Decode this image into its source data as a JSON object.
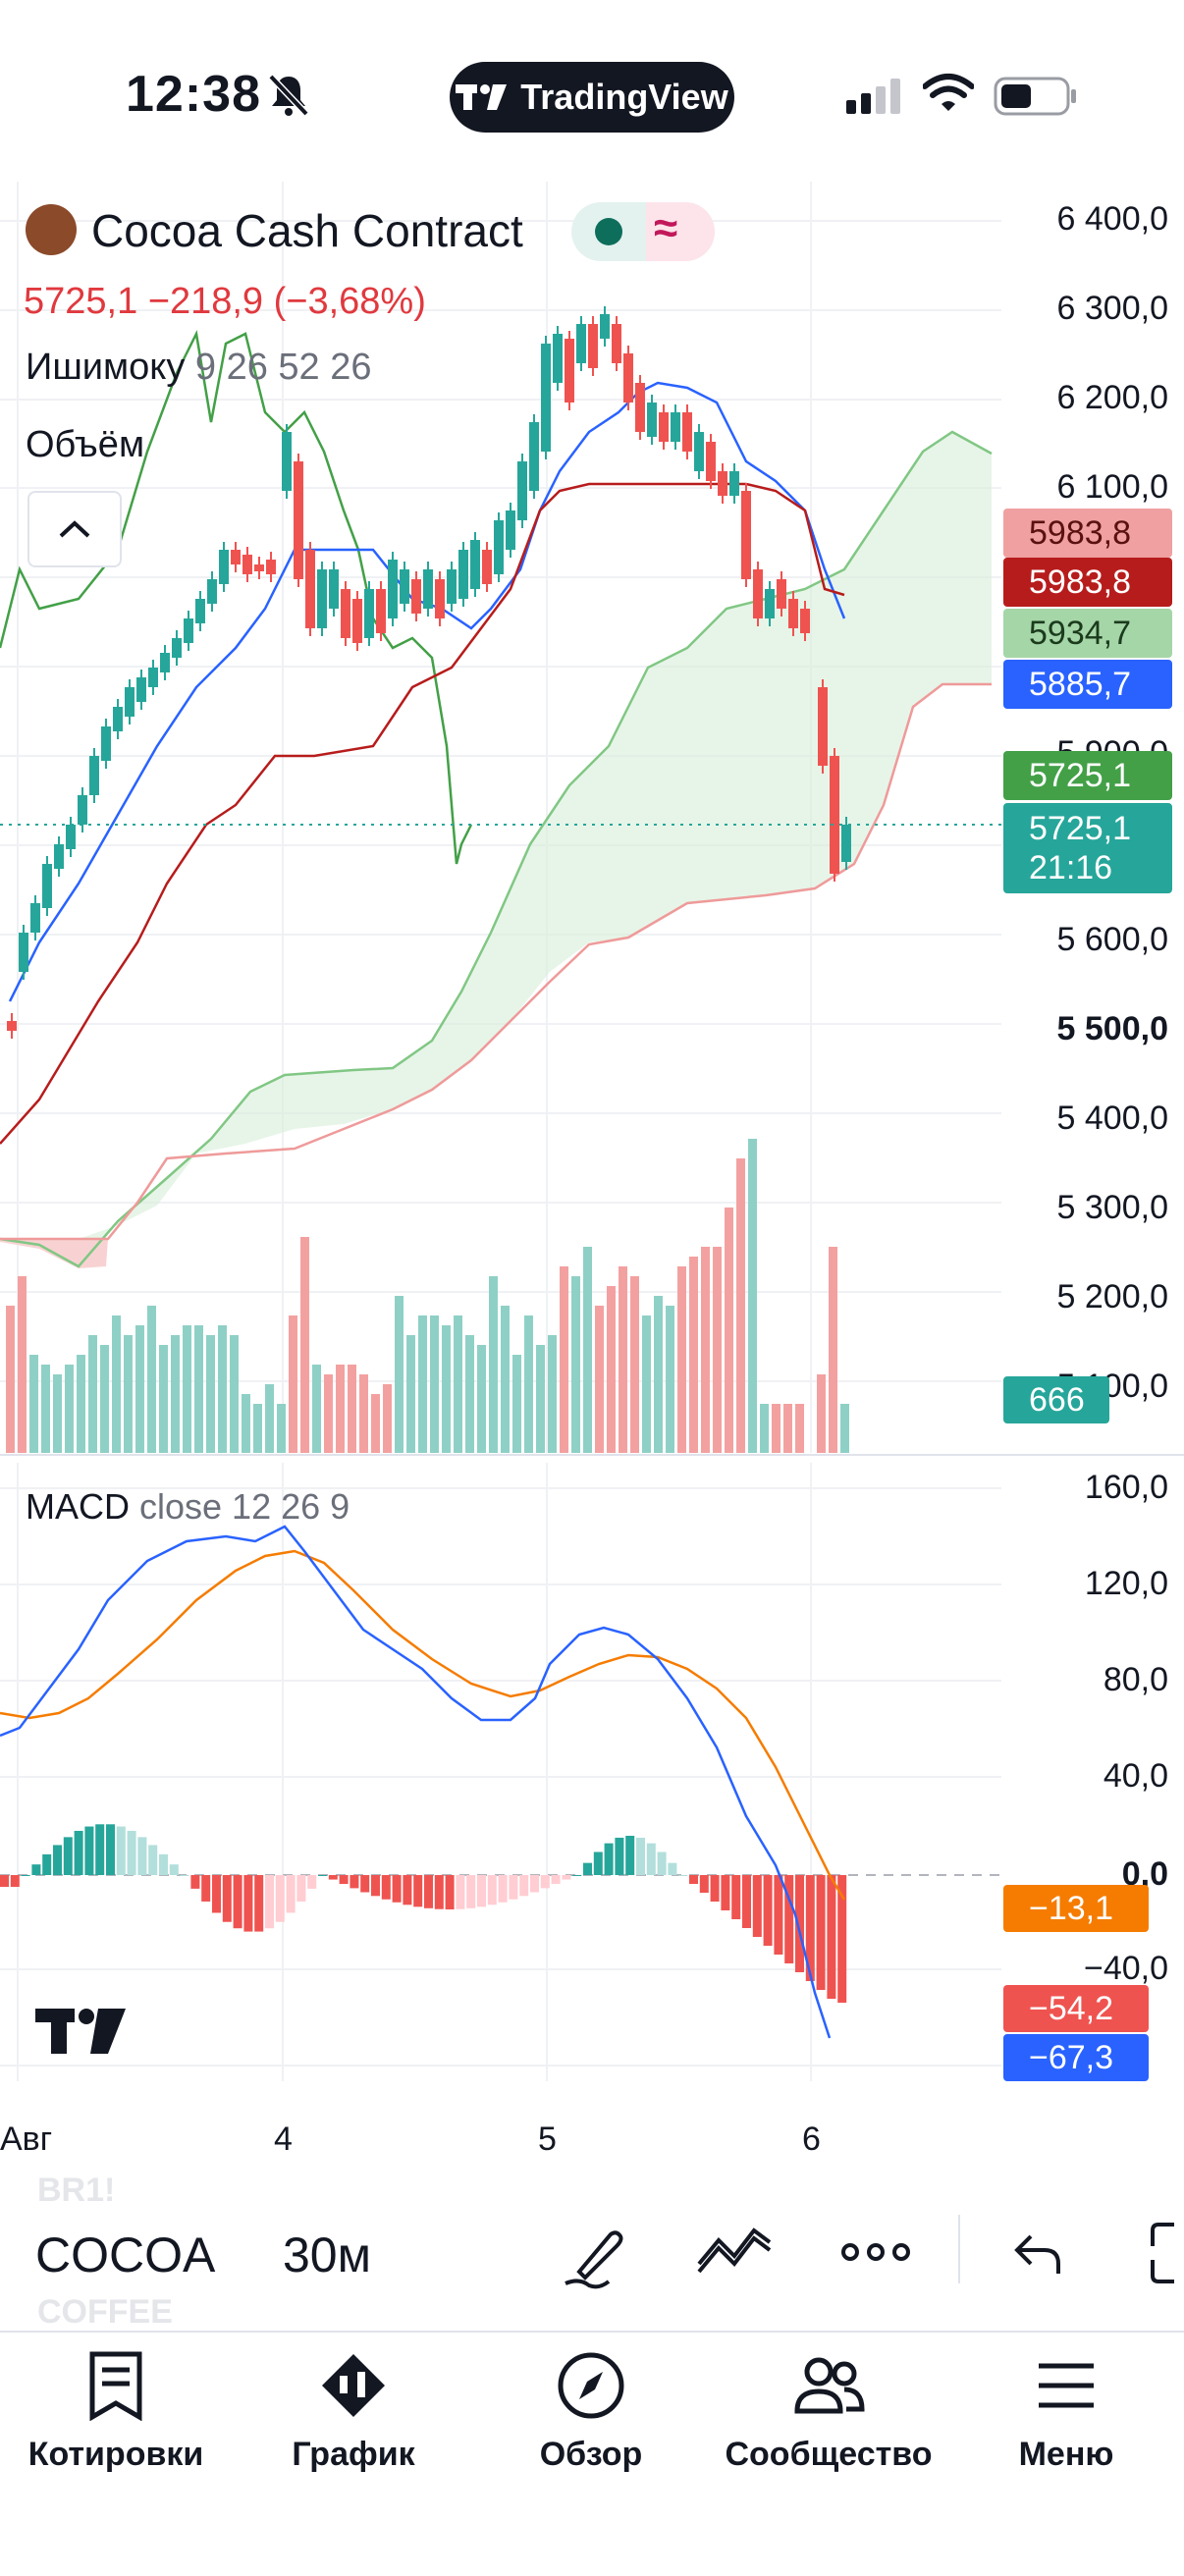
{
  "status_bar": {
    "time": "12:38",
    "app_pill": "TradingView"
  },
  "legend": {
    "symbol": "Cocoa Cash Contract",
    "change": "5725,1  −218,9 (−3,68%)",
    "ichimoku_name": "Ишимоку",
    "ichimoku_params": "9 26 52 26",
    "volume_name": "Объём"
  },
  "price_axis": [
    "6 400,0",
    "6 300,0",
    "6 200,0",
    "6 100,0",
    "5 900,0",
    "5 600,0",
    "5 500,0",
    "5 400,0",
    "5 300,0",
    "5 200,0",
    "5 100,0"
  ],
  "price_tags": {
    "kijun": "5983,8",
    "senkou_b": "5983,8",
    "senkou_a": "5934,7",
    "tenkan": "5885,7",
    "chikou": "5725,1",
    "last": "5725,1",
    "countdown": "21:16",
    "volume": "666"
  },
  "macd": {
    "name": "MACD",
    "params": "close  12  26  9",
    "axis": [
      "160,0",
      "120,0",
      "80,0",
      "40,0",
      "0,0",
      "−40,0"
    ],
    "tags": {
      "signal": "−13,1",
      "histogram": "−54,2",
      "macd": "−67,3"
    }
  },
  "time_axis": [
    "Авг",
    "4",
    "5",
    "6"
  ],
  "toolbar": {
    "symbol": "COCOA",
    "ghost_prev": "BR1!",
    "ghost_next": "COFFEE",
    "timeframe": "30м"
  },
  "nav": {
    "quotes": "Котировки",
    "chart": "График",
    "overview": "Обзор",
    "community": "Сообщество",
    "menu": "Меню"
  },
  "colors": {
    "up": "#26a69a",
    "down": "#ef5350",
    "tenkan": "#2962ff",
    "kijun": "#b71c1c",
    "chikou": "#43a047",
    "signal": "#f57c00"
  }
}
